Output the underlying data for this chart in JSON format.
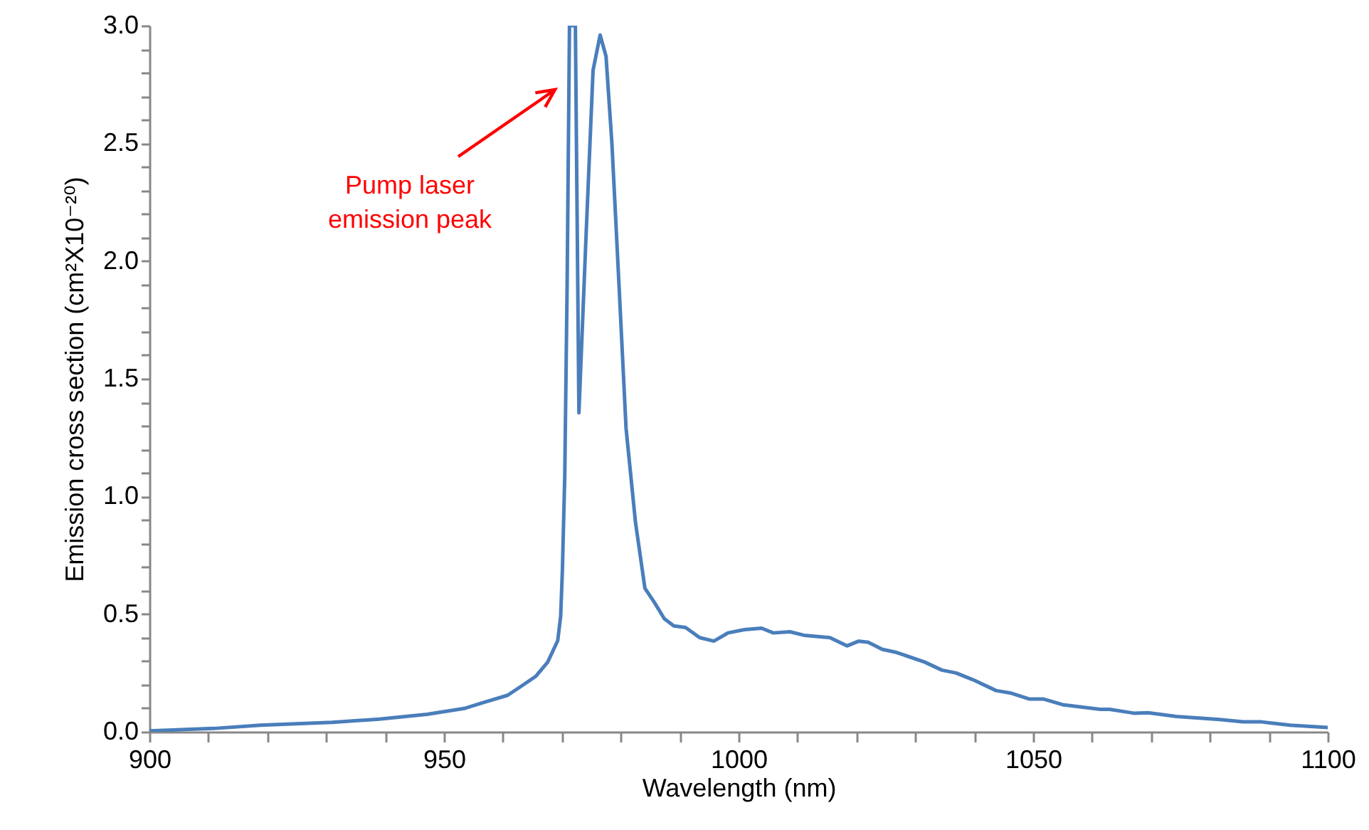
{
  "chart_data": {
    "type": "line",
    "xlabel": "Wavelength (nm)",
    "ylabel": "Emission cross section (cm²X10⁻²⁰)",
    "x": [
      900,
      910.9,
      918.9,
      931,
      939,
      947.1,
      953.6,
      956.8,
      960.8,
      963.2,
      965.6,
      967.6,
      969.3,
      969.8,
      970.1,
      970.5,
      970.9,
      971.3,
      972.3,
      972.9,
      974.1,
      975.3,
      976.5,
      977.5,
      978.5,
      979.7,
      980.9,
      982.5,
      984.1,
      985.7,
      987.4,
      989,
      991,
      993.4,
      995.8,
      998.2,
      1001,
      1003.9,
      1005.9,
      1008.7,
      1011.1,
      1015.5,
      1018.4,
      1020.4,
      1022,
      1024.4,
      1026.8,
      1031.6,
      1034.5,
      1036.9,
      1039.7,
      1043.7,
      1046.1,
      1049.4,
      1051.8,
      1055,
      1058.2,
      1061.4,
      1063,
      1067.1,
      1069.5,
      1074.3,
      1081.6,
      1085.6,
      1088.8,
      1093.6,
      1100
    ],
    "series": [
      {
        "color": "#4a7ebb",
        "values": [
          0.004,
          0.014,
          0.028,
          0.04,
          0.054,
          0.074,
          0.1,
          0.125,
          0.155,
          0.195,
          0.236,
          0.296,
          0.387,
          0.49,
          0.69,
          1.09,
          1.9,
          3.0,
          3.0,
          1.355,
          2.1,
          2.81,
          2.96,
          2.87,
          2.5,
          1.9,
          1.29,
          0.89,
          0.61,
          0.55,
          0.48,
          0.45,
          0.443,
          0.4,
          0.385,
          0.42,
          0.434,
          0.44,
          0.42,
          0.425,
          0.41,
          0.4,
          0.365,
          0.385,
          0.38,
          0.35,
          0.337,
          0.296,
          0.262,
          0.25,
          0.222,
          0.175,
          0.165,
          0.139,
          0.139,
          0.115,
          0.105,
          0.095,
          0.095,
          0.079,
          0.081,
          0.065,
          0.052,
          0.042,
          0.042,
          0.028,
          0.018
        ]
      }
    ],
    "xlim": [
      900,
      1100
    ],
    "xticks": [
      900,
      {
        "value": 910,
        "label": null
      },
      {
        "value": 920,
        "label": null
      },
      {
        "value": 930,
        "label": null
      },
      {
        "value": 940,
        "label": null
      },
      950,
      {
        "value": 960,
        "label": null
      },
      {
        "value": 970,
        "label": null
      },
      {
        "value": 980,
        "label": null
      },
      {
        "value": 990,
        "label": null
      },
      1000,
      {
        "value": 1010,
        "label": null
      },
      {
        "value": 1020,
        "label": null
      },
      {
        "value": 1030,
        "label": null
      },
      {
        "value": 1040,
        "label": null
      },
      1050,
      {
        "value": 1060,
        "label": null
      },
      {
        "value": 1070,
        "label": null
      },
      {
        "value": 1080,
        "label": null
      },
      {
        "value": 1090,
        "label": null
      },
      1100
    ],
    "ylim": [
      0,
      3.0
    ],
    "yticks": [
      {
        "value": 0,
        "label": "0.0"
      },
      {
        "value": 0.1,
        "label": null
      },
      {
        "value": 0.2,
        "label": null
      },
      {
        "value": 0.3,
        "label": null
      },
      {
        "value": 0.4,
        "label": null
      },
      {
        "value": 0.5,
        "label": "0.5"
      },
      {
        "value": 0.6,
        "label": null
      },
      {
        "value": 0.7,
        "label": null
      },
      {
        "value": 0.8,
        "label": null
      },
      {
        "value": 0.9,
        "label": null
      },
      {
        "value": 1.0,
        "label": "1.0"
      },
      {
        "value": 1.1,
        "label": null
      },
      {
        "value": 1.2,
        "label": null
      },
      {
        "value": 1.3,
        "label": null
      },
      {
        "value": 1.4,
        "label": null
      },
      {
        "value": 1.5,
        "label": "1.5"
      },
      {
        "value": 1.6,
        "label": null
      },
      {
        "value": 1.7,
        "label": null
      },
      {
        "value": 1.8,
        "label": null
      },
      {
        "value": 1.9,
        "label": null
      },
      {
        "value": 2.0,
        "label": "2.0"
      },
      {
        "value": 2.1,
        "label": null
      },
      {
        "value": 2.2,
        "label": null
      },
      {
        "value": 2.3,
        "label": null
      },
      {
        "value": 2.4,
        "label": null
      },
      {
        "value": 2.5,
        "label": "2.5"
      },
      {
        "value": 2.6,
        "label": null
      },
      {
        "value": 2.7,
        "label": null
      },
      {
        "value": 2.8,
        "label": null
      },
      {
        "value": 2.9,
        "label": null
      },
      {
        "value": 3.0,
        "label": "3.0"
      }
    ],
    "grid": false,
    "annotations": [
      "Pump laser emission peak"
    ]
  }
}
